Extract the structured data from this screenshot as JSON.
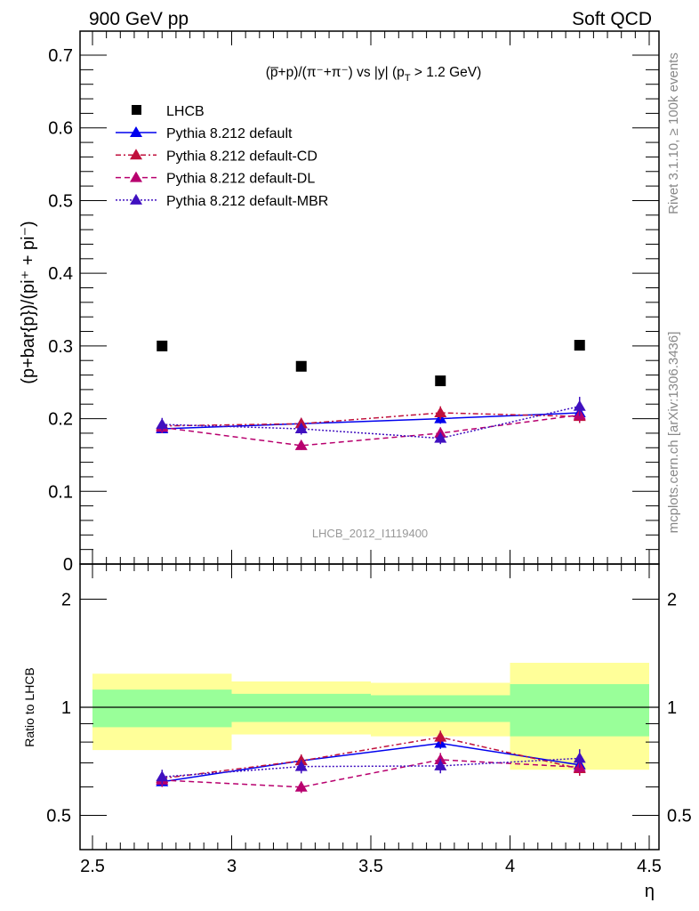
{
  "chart_data": {
    "type": "line",
    "header_left": "900 GeV pp",
    "header_right": "Soft QCD",
    "title": "(p̅+p)/(π⁻+π⁻) vs |y| (p_T > 1.2 GeV)",
    "title_parts": {
      "main": "(p̅+p)/(π⁻+π⁻) vs |y| (p",
      "sub": "T",
      "tail": " > 1.2 GeV)"
    },
    "ylabel": "(p+bar{p})/(pi⁺ + pi⁻)",
    "ratio_ylabel": "Ratio to LHCB",
    "xlabel": "η",
    "analysis_id": "LHCB_2012_I1119400",
    "side_right_top": "Rivet 3.1.10, ≥ 100k events",
    "side_right_bottom": "mcplots.cern.ch [arXiv:1306.3436]",
    "xlim": [
      2.5,
      4.5
    ],
    "ylim": [
      0,
      0.7
    ],
    "ratio_ylim": [
      0.4,
      2.3
    ],
    "ratio_scale": "log",
    "x_ticks": [
      "2.5",
      "3",
      "3.5",
      "4",
      "4.5"
    ],
    "y_ticks": [
      "0",
      "0.1",
      "0.2",
      "0.3",
      "0.4",
      "0.5",
      "0.6",
      "0.7"
    ],
    "ratio_ticks": [
      "0.5",
      "1",
      "2"
    ],
    "x": [
      2.75,
      3.25,
      3.75,
      4.25
    ],
    "legend_position": "top-left",
    "data": {
      "name": "LHCB",
      "values": [
        0.3,
        0.272,
        0.252,
        0.301
      ],
      "color": "#000000",
      "band_stat": [
        [
          0.88,
          1.12
        ],
        [
          0.91,
          1.09
        ],
        [
          0.91,
          1.08
        ],
        [
          0.83,
          1.16
        ]
      ],
      "band_total": [
        [
          0.76,
          1.24
        ],
        [
          0.84,
          1.18
        ],
        [
          0.83,
          1.17
        ],
        [
          0.67,
          1.33
        ]
      ]
    },
    "series": [
      {
        "name": "Pythia 8.212 default",
        "values": [
          0.186,
          0.193,
          0.2,
          0.208
        ],
        "errors": [
          0.006,
          0.006,
          0.007,
          0.008
        ],
        "color": "#0000ee",
        "dash": ""
      },
      {
        "name": "Pythia 8.212 default-CD",
        "values": [
          0.19,
          0.193,
          0.208,
          0.203
        ],
        "errors": [
          0.008,
          0.008,
          0.009,
          0.009
        ],
        "color": "#c0103c",
        "dash": "6,3,2,3"
      },
      {
        "name": "Pythia 8.212 default-DL",
        "values": [
          0.188,
          0.163,
          0.18,
          0.205
        ],
        "errors": [
          0.008,
          0.006,
          0.008,
          0.009
        ],
        "color": "#b8006e",
        "dash": "6,4"
      },
      {
        "name": "Pythia 8.212 default-MBR",
        "values": [
          0.192,
          0.186,
          0.173,
          0.217
        ],
        "errors": [
          0.009,
          0.008,
          0.008,
          0.013
        ],
        "color": "#4010c0",
        "dash": "2,2"
      }
    ]
  }
}
